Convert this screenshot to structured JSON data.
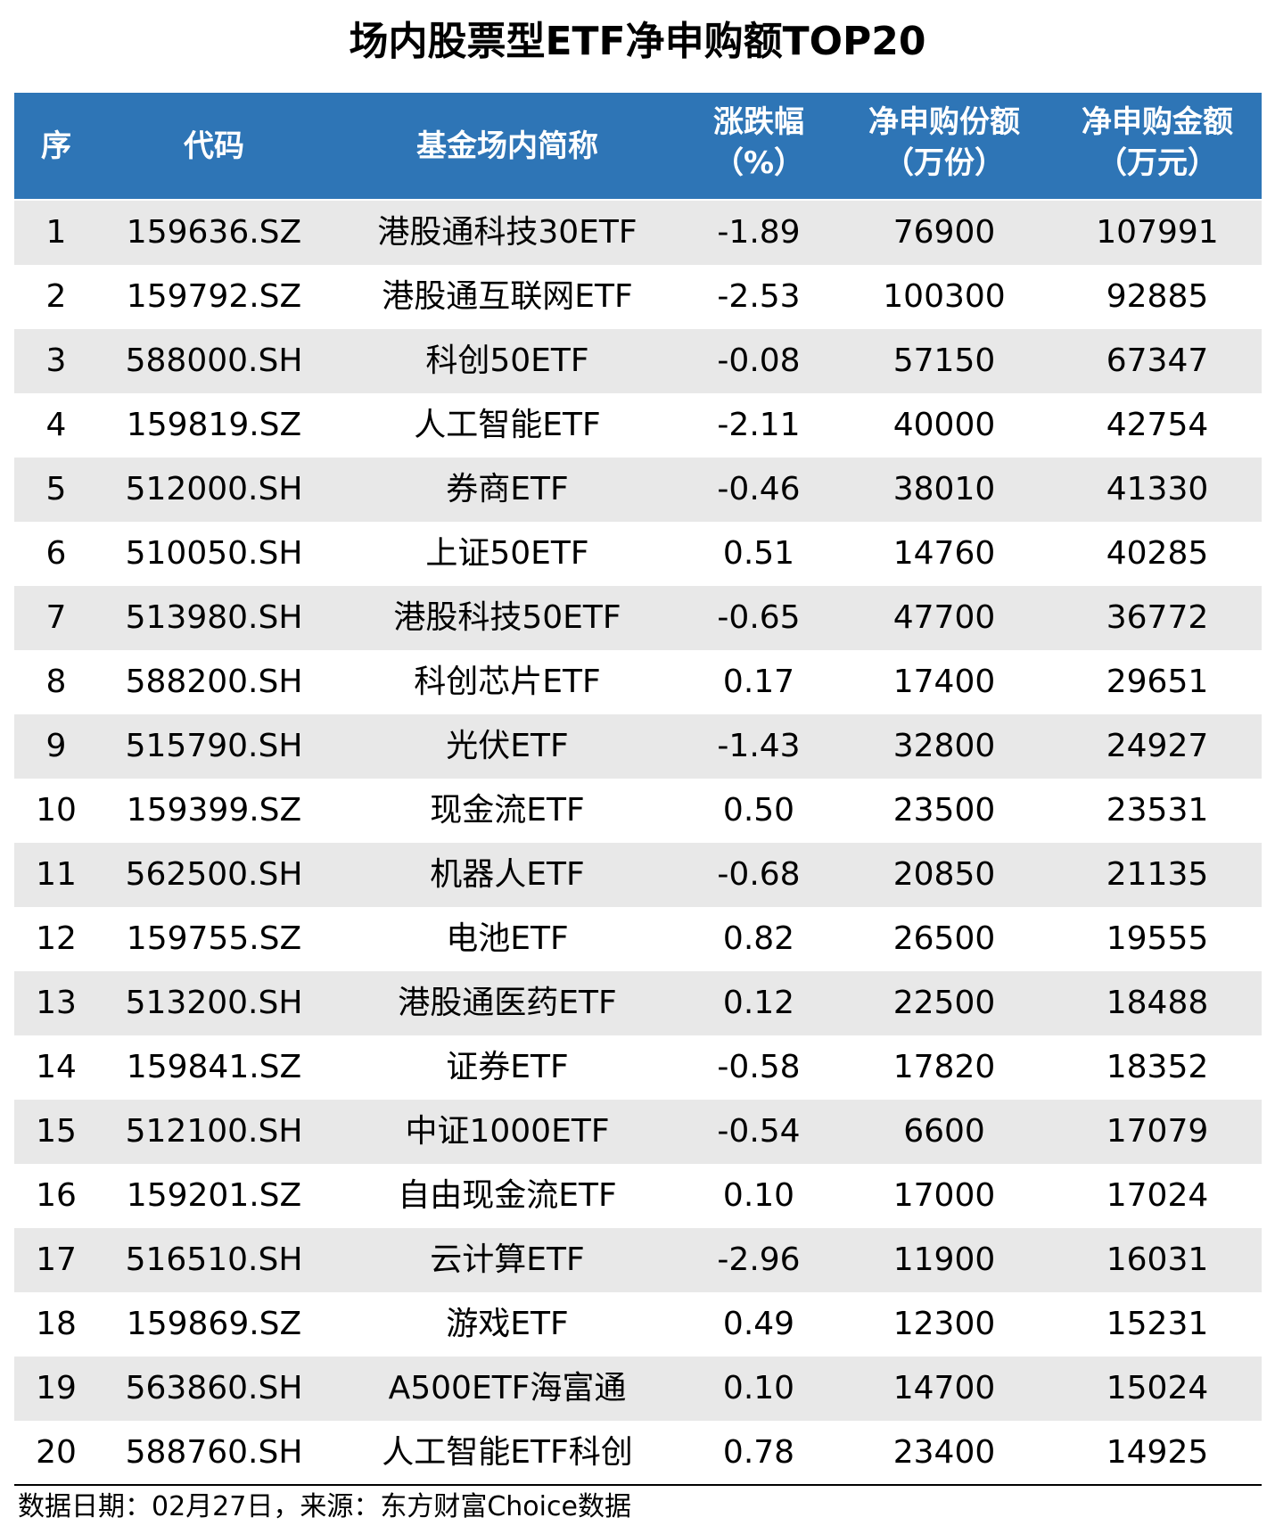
{
  "title": "场内股票型ETF净申购额TOP20",
  "table": {
    "headers": [
      [
        "序"
      ],
      [
        "代码"
      ],
      [
        "基金场内简称"
      ],
      [
        "涨跌幅",
        "（%）"
      ],
      [
        "净申购份额",
        "（万份）"
      ],
      [
        "净申购金额",
        "（万元）"
      ]
    ],
    "rows": [
      [
        "1",
        "159636.SZ",
        "港股通科技30ETF",
        "-1.89",
        "76900",
        "107991"
      ],
      [
        "2",
        "159792.SZ",
        "港股通互联网ETF",
        "-2.53",
        "100300",
        "92885"
      ],
      [
        "3",
        "588000.SH",
        "科创50ETF",
        "-0.08",
        "57150",
        "67347"
      ],
      [
        "4",
        "159819.SZ",
        "人工智能ETF",
        "-2.11",
        "40000",
        "42754"
      ],
      [
        "5",
        "512000.SH",
        "券商ETF",
        "-0.46",
        "38010",
        "41330"
      ],
      [
        "6",
        "510050.SH",
        "上证50ETF",
        "0.51",
        "14760",
        "40285"
      ],
      [
        "7",
        "513980.SH",
        "港股科技50ETF",
        "-0.65",
        "47700",
        "36772"
      ],
      [
        "8",
        "588200.SH",
        "科创芯片ETF",
        "0.17",
        "17400",
        "29651"
      ],
      [
        "9",
        "515790.SH",
        "光伏ETF",
        "-1.43",
        "32800",
        "24927"
      ],
      [
        "10",
        "159399.SZ",
        "现金流ETF",
        "0.50",
        "23500",
        "23531"
      ],
      [
        "11",
        "562500.SH",
        "机器人ETF",
        "-0.68",
        "20850",
        "21135"
      ],
      [
        "12",
        "159755.SZ",
        "电池ETF",
        "0.82",
        "26500",
        "19555"
      ],
      [
        "13",
        "513200.SH",
        "港股通医药ETF",
        "0.12",
        "22500",
        "18488"
      ],
      [
        "14",
        "159841.SZ",
        "证券ETF",
        "-0.58",
        "17820",
        "18352"
      ],
      [
        "15",
        "512100.SH",
        "中证1000ETF",
        "-0.54",
        "6600",
        "17079"
      ],
      [
        "16",
        "159201.SZ",
        "自由现金流ETF",
        "0.10",
        "17000",
        "17024"
      ],
      [
        "17",
        "516510.SH",
        "云计算ETF",
        "-2.96",
        "11900",
        "16031"
      ],
      [
        "18",
        "159869.SZ",
        "游戏ETF",
        "0.49",
        "12300",
        "15231"
      ],
      [
        "19",
        "563860.SH",
        "A500ETF海富通",
        "0.10",
        "14700",
        "15024"
      ],
      [
        "20",
        "588760.SH",
        "人工智能ETF科创",
        "0.78",
        "23400",
        "14925"
      ]
    ]
  },
  "footer": "数据日期：02月27日，来源：东方财富Choice数据"
}
